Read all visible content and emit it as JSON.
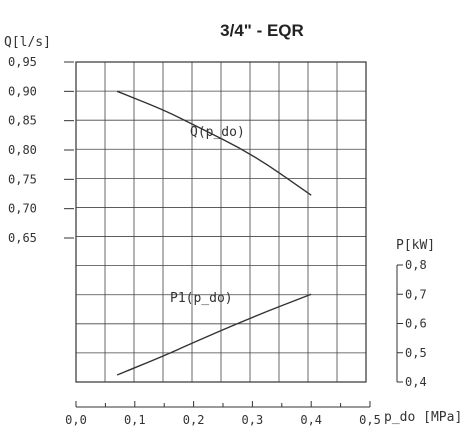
{
  "chart_data": {
    "type": "line",
    "title": "3/4\" - EQR",
    "x_label": "p_do [MPa]",
    "x_ticks": [
      "0,0",
      "0,1",
      "0,2",
      "0,3",
      "0,4",
      "0,5"
    ],
    "xlim": [
      0,
      0.5
    ],
    "grid": true,
    "left_axis": {
      "label": "Q[l/s]",
      "ticks": [
        "0,95",
        "0,90",
        "0,85",
        "0,80",
        "0,75",
        "0,70",
        "0,65"
      ],
      "ylim": [
        0.65,
        0.95
      ]
    },
    "right_axis": {
      "label": "P[kW]",
      "ticks": [
        "0,8",
        "0,7",
        "0,6",
        "0,5",
        "0,4"
      ],
      "ylim": [
        0.4,
        0.8
      ]
    },
    "series": [
      {
        "name": "Q(p_do)",
        "axis": "left",
        "x": [
          0.07,
          0.15,
          0.2,
          0.3,
          0.4
        ],
        "y": [
          0.9,
          0.868,
          0.843,
          0.793,
          0.723
        ]
      },
      {
        "name": "P1(p_do)",
        "axis": "right",
        "x": [
          0.07,
          0.15,
          0.2,
          0.3,
          0.4
        ],
        "y": [
          0.424,
          0.49,
          0.535,
          0.622,
          0.7
        ]
      }
    ]
  }
}
